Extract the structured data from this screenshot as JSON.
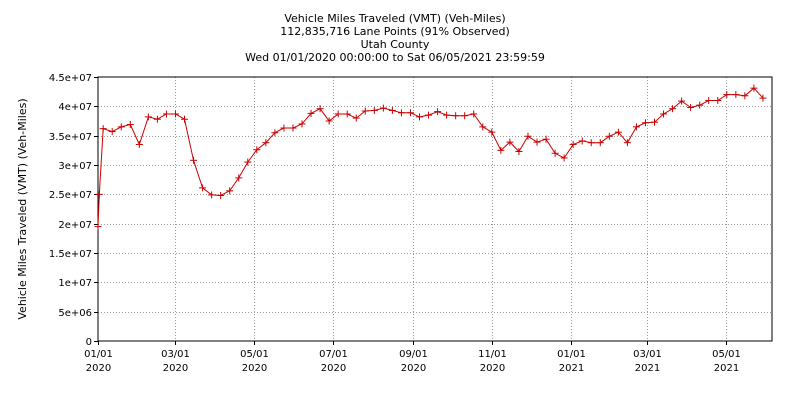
{
  "title_lines": [
    "Vehicle Miles Traveled (VMT) (Veh-Miles)",
    "112,835,716 Lane Points (91% Observed)",
    "Utah County",
    "Wed 01/01/2020 00:00:00 to Sat 06/05/2021 23:59:59"
  ],
  "chart_data": {
    "type": "line",
    "title": "Vehicle Miles Traveled (VMT) (Veh-Miles)",
    "ylabel": "Vehicle Miles Traveled (VMT) (Veh-Miles)",
    "xlabel": "",
    "ylim": [
      0,
      45000000
    ],
    "xlim": [
      "2020-01-01",
      "2021-06-05"
    ],
    "grid": true,
    "series_color": "#cc0000",
    "y_ticks": [
      {
        "value": 0,
        "label": "0"
      },
      {
        "value": 5000000,
        "label": "5e+06"
      },
      {
        "value": 10000000,
        "label": "1e+07"
      },
      {
        "value": 15000000,
        "label": "1.5e+07"
      },
      {
        "value": 20000000,
        "label": "2e+07"
      },
      {
        "value": 25000000,
        "label": "2.5e+07"
      },
      {
        "value": 30000000,
        "label": "3e+07"
      },
      {
        "value": 35000000,
        "label": "3.5e+07"
      },
      {
        "value": 40000000,
        "label": "4e+07"
      },
      {
        "value": 45000000,
        "label": "4.5e+07"
      }
    ],
    "x_ticks": [
      {
        "date": "2020-01-01",
        "line1": "01/01",
        "line2": "2020"
      },
      {
        "date": "2020-03-01",
        "line1": "03/01",
        "line2": "2020"
      },
      {
        "date": "2020-05-01",
        "line1": "05/01",
        "line2": "2020"
      },
      {
        "date": "2020-07-01",
        "line1": "07/01",
        "line2": "2020"
      },
      {
        "date": "2020-09-01",
        "line1": "09/01",
        "line2": "2020"
      },
      {
        "date": "2020-11-01",
        "line1": "11/01",
        "line2": "2020"
      },
      {
        "date": "2021-01-01",
        "line1": "01/01",
        "line2": "2021"
      },
      {
        "date": "2021-03-01",
        "line1": "03/01",
        "line2": "2021"
      },
      {
        "date": "2021-05-01",
        "line1": "05/01",
        "line2": "2021"
      }
    ],
    "points": [
      {
        "x": "2020-01-01",
        "y": 19500000
      },
      {
        "x": "2020-01-02",
        "y": 25000000
      },
      {
        "x": "2020-01-05",
        "y": 36200000
      },
      {
        "x": "2020-01-12",
        "y": 35700000
      },
      {
        "x": "2020-01-19",
        "y": 36500000
      },
      {
        "x": "2020-01-26",
        "y": 36900000
      },
      {
        "x": "2020-02-02",
        "y": 33500000
      },
      {
        "x": "2020-02-09",
        "y": 38200000
      },
      {
        "x": "2020-02-16",
        "y": 37800000
      },
      {
        "x": "2020-02-23",
        "y": 38700000
      },
      {
        "x": "2020-03-01",
        "y": 38700000
      },
      {
        "x": "2020-03-08",
        "y": 37800000
      },
      {
        "x": "2020-03-15",
        "y": 30800000
      },
      {
        "x": "2020-03-22",
        "y": 26100000
      },
      {
        "x": "2020-03-29",
        "y": 24900000
      },
      {
        "x": "2020-04-05",
        "y": 24800000
      },
      {
        "x": "2020-04-12",
        "y": 25600000
      },
      {
        "x": "2020-04-19",
        "y": 27800000
      },
      {
        "x": "2020-04-26",
        "y": 30500000
      },
      {
        "x": "2020-05-03",
        "y": 32600000
      },
      {
        "x": "2020-05-10",
        "y": 33800000
      },
      {
        "x": "2020-05-17",
        "y": 35500000
      },
      {
        "x": "2020-05-24",
        "y": 36300000
      },
      {
        "x": "2020-05-31",
        "y": 36300000
      },
      {
        "x": "2020-06-07",
        "y": 37000000
      },
      {
        "x": "2020-06-14",
        "y": 38800000
      },
      {
        "x": "2020-06-21",
        "y": 39600000
      },
      {
        "x": "2020-06-28",
        "y": 37500000
      },
      {
        "x": "2020-07-05",
        "y": 38700000
      },
      {
        "x": "2020-07-12",
        "y": 38700000
      },
      {
        "x": "2020-07-19",
        "y": 38000000
      },
      {
        "x": "2020-07-26",
        "y": 39200000
      },
      {
        "x": "2020-08-02",
        "y": 39300000
      },
      {
        "x": "2020-08-09",
        "y": 39700000
      },
      {
        "x": "2020-08-16",
        "y": 39300000
      },
      {
        "x": "2020-08-23",
        "y": 38900000
      },
      {
        "x": "2020-08-30",
        "y": 38900000
      },
      {
        "x": "2020-09-06",
        "y": 38200000
      },
      {
        "x": "2020-09-13",
        "y": 38500000
      },
      {
        "x": "2020-09-20",
        "y": 39100000
      },
      {
        "x": "2020-09-27",
        "y": 38500000
      },
      {
        "x": "2020-10-04",
        "y": 38400000
      },
      {
        "x": "2020-10-11",
        "y": 38400000
      },
      {
        "x": "2020-10-18",
        "y": 38700000
      },
      {
        "x": "2020-10-25",
        "y": 36500000
      },
      {
        "x": "2020-11-01",
        "y": 35600000
      },
      {
        "x": "2020-11-08",
        "y": 32500000
      },
      {
        "x": "2020-11-15",
        "y": 33900000
      },
      {
        "x": "2020-11-22",
        "y": 32300000
      },
      {
        "x": "2020-11-29",
        "y": 34900000
      },
      {
        "x": "2020-12-06",
        "y": 33900000
      },
      {
        "x": "2020-12-13",
        "y": 34400000
      },
      {
        "x": "2020-12-20",
        "y": 32000000
      },
      {
        "x": "2020-12-27",
        "y": 31200000
      },
      {
        "x": "2021-01-03",
        "y": 33500000
      },
      {
        "x": "2021-01-10",
        "y": 34100000
      },
      {
        "x": "2021-01-17",
        "y": 33800000
      },
      {
        "x": "2021-01-24",
        "y": 33800000
      },
      {
        "x": "2021-01-31",
        "y": 34900000
      },
      {
        "x": "2021-02-07",
        "y": 35600000
      },
      {
        "x": "2021-02-14",
        "y": 33800000
      },
      {
        "x": "2021-02-21",
        "y": 36500000
      },
      {
        "x": "2021-02-28",
        "y": 37200000
      },
      {
        "x": "2021-03-07",
        "y": 37300000
      },
      {
        "x": "2021-03-14",
        "y": 38700000
      },
      {
        "x": "2021-03-21",
        "y": 39600000
      },
      {
        "x": "2021-03-28",
        "y": 40900000
      },
      {
        "x": "2021-04-04",
        "y": 39800000
      },
      {
        "x": "2021-04-11",
        "y": 40200000
      },
      {
        "x": "2021-04-18",
        "y": 41000000
      },
      {
        "x": "2021-04-25",
        "y": 41000000
      },
      {
        "x": "2021-05-02",
        "y": 42000000
      },
      {
        "x": "2021-05-09",
        "y": 42000000
      },
      {
        "x": "2021-05-16",
        "y": 41800000
      },
      {
        "x": "2021-05-23",
        "y": 43100000
      },
      {
        "x": "2021-05-30",
        "y": 41400000
      }
    ]
  }
}
